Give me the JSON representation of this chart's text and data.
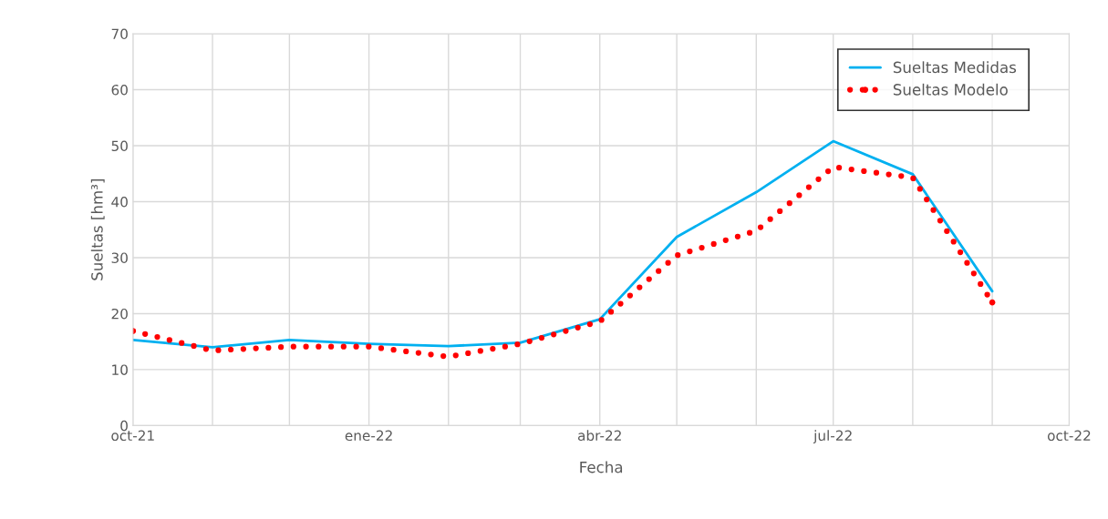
{
  "chart_data": {
    "type": "line",
    "xlabel": "Fecha",
    "ylabel": "Sueltas [hm³]",
    "x": [
      "2021-10",
      "2021-11",
      "2021-12",
      "2022-01",
      "2022-02",
      "2022-03",
      "2022-04",
      "2022-05",
      "2022-06",
      "2022-07",
      "2022-08",
      "2022-09"
    ],
    "series": [
      {
        "name": "Sueltas Medidas",
        "color": "#00b0f0",
        "line_style": "solid",
        "values": [
          15.3,
          14.0,
          15.3,
          14.6,
          14.2,
          14.8,
          19.0,
          33.7,
          41.7,
          50.8,
          44.9,
          24.0
        ]
      },
      {
        "name": "Sueltas Modelo",
        "color": "#ff0000",
        "line_style": "dotted",
        "values": [
          16.9,
          13.4,
          14.1,
          14.1,
          12.3,
          14.6,
          18.6,
          30.4,
          34.8,
          46.2,
          44.3,
          22.0
        ]
      }
    ],
    "xlim": [
      "2021-10",
      "2022-10"
    ],
    "xticks": [
      {
        "value": "2021-10",
        "label": "oct-21"
      },
      {
        "value": "2021-11",
        "label": null
      },
      {
        "value": "2021-12",
        "label": null
      },
      {
        "value": "2022-01",
        "label": "ene-22"
      },
      {
        "value": "2022-02",
        "label": null
      },
      {
        "value": "2022-03",
        "label": null
      },
      {
        "value": "2022-04",
        "label": "abr-22"
      },
      {
        "value": "2022-05",
        "label": null
      },
      {
        "value": "2022-06",
        "label": null
      },
      {
        "value": "2022-07",
        "label": "jul-22"
      },
      {
        "value": "2022-08",
        "label": null
      },
      {
        "value": "2022-09",
        "label": null
      },
      {
        "value": "2022-10",
        "label": "oct-22"
      }
    ],
    "ylim": [
      0,
      70
    ],
    "yticks": [
      0,
      10,
      20,
      30,
      40,
      50,
      60,
      70
    ],
    "grid": true,
    "legend": "top right"
  }
}
